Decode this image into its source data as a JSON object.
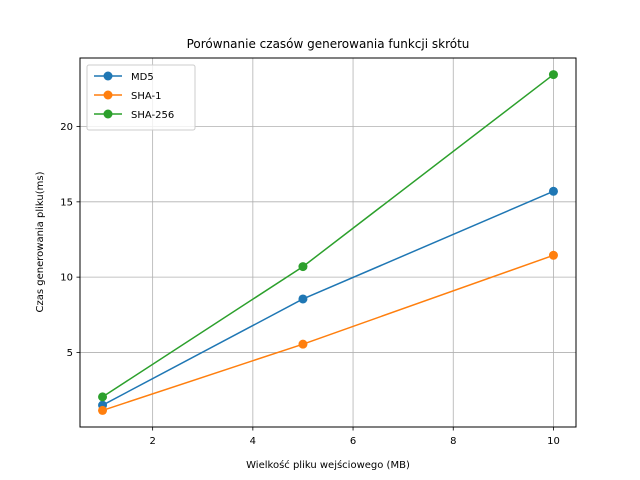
{
  "chart_data": {
    "type": "line",
    "title": "Porównanie czasów generowania funkcji skrótu",
    "xlabel": "Wielkość pliku wejściowego (MB)",
    "ylabel": "Czas generowania pliku(ms)",
    "x": [
      1,
      5,
      10
    ],
    "xlim": [
      0.55,
      10.45
    ],
    "ylim": [
      0.05,
      24.55
    ],
    "xticks": [
      2,
      4,
      6,
      8,
      10
    ],
    "yticks": [
      5,
      10,
      15,
      20
    ],
    "grid": true,
    "legend_position": "upper-left",
    "series": [
      {
        "name": "MD5",
        "color": "#1f77b4",
        "values": [
          1.5,
          8.55,
          15.7
        ]
      },
      {
        "name": "SHA-1",
        "color": "#ff7f0e",
        "values": [
          1.15,
          5.55,
          11.45
        ]
      },
      {
        "name": "SHA-256",
        "color": "#2ca02c",
        "values": [
          2.05,
          10.7,
          23.45
        ]
      }
    ]
  }
}
